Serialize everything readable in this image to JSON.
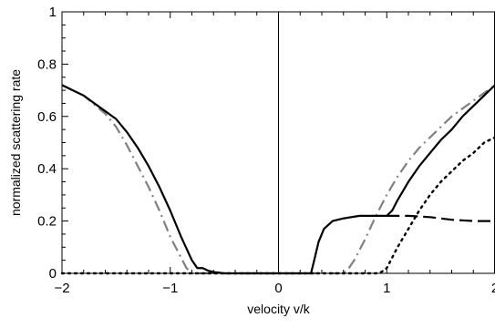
{
  "chart_data": {
    "type": "line",
    "title": "",
    "xlabel": "velocity  v/k",
    "ylabel": "normalized scattering rate",
    "xlim": [
      -2,
      2
    ],
    "ylim": [
      0,
      1
    ],
    "x_ticks": [
      "−2",
      "−1",
      "0",
      "1",
      "2"
    ],
    "y_ticks": [
      "0",
      "0.2",
      "0.4",
      "0.6",
      "0.8",
      "1"
    ],
    "grid": false,
    "legend": "none",
    "vertical_line_at": 0,
    "series": [
      {
        "style": "solid",
        "color": "#000000",
        "points": [
          [
            -2.0,
            0.72
          ],
          [
            -1.8,
            0.68
          ],
          [
            -1.6,
            0.62
          ],
          [
            -1.5,
            0.59
          ],
          [
            -1.4,
            0.54
          ],
          [
            -1.3,
            0.48
          ],
          [
            -1.2,
            0.41
          ],
          [
            -1.1,
            0.33
          ],
          [
            -1.0,
            0.24
          ],
          [
            -0.9,
            0.14
          ],
          [
            -0.8,
            0.05
          ],
          [
            -0.75,
            0.02
          ],
          [
            -0.7,
            0.02
          ],
          [
            -0.65,
            0.01
          ],
          [
            -0.6,
            0.005
          ],
          [
            -0.5,
            0.0
          ],
          [
            0.0,
            0.0
          ],
          [
            0.3,
            0.0
          ],
          [
            0.33,
            0.05
          ],
          [
            0.37,
            0.12
          ],
          [
            0.42,
            0.17
          ],
          [
            0.5,
            0.2
          ],
          [
            0.6,
            0.21
          ],
          [
            0.75,
            0.22
          ],
          [
            1.0,
            0.22
          ],
          [
            1.05,
            0.24
          ],
          [
            1.1,
            0.28
          ],
          [
            1.2,
            0.35
          ],
          [
            1.3,
            0.41
          ],
          [
            1.4,
            0.46
          ],
          [
            1.5,
            0.51
          ],
          [
            1.6,
            0.55
          ],
          [
            1.7,
            0.6
          ],
          [
            1.8,
            0.64
          ],
          [
            1.9,
            0.68
          ],
          [
            2.0,
            0.72
          ]
        ]
      },
      {
        "style": "dashed",
        "color": "#000000",
        "points": [
          [
            1.0,
            0.22
          ],
          [
            1.2,
            0.22
          ],
          [
            1.4,
            0.215
          ],
          [
            1.6,
            0.205
          ],
          [
            1.8,
            0.2
          ],
          [
            2.0,
            0.2
          ]
        ]
      },
      {
        "style": "dotted",
        "color": "#000000",
        "points": [
          [
            -2.0,
            0.0
          ],
          [
            -1.0,
            0.0
          ],
          [
            0.0,
            0.0
          ],
          [
            0.9,
            0.0
          ],
          [
            0.95,
            0.005
          ],
          [
            1.0,
            0.02
          ],
          [
            1.05,
            0.06
          ],
          [
            1.1,
            0.1
          ],
          [
            1.2,
            0.17
          ],
          [
            1.3,
            0.24
          ],
          [
            1.4,
            0.3
          ],
          [
            1.5,
            0.35
          ],
          [
            1.6,
            0.39
          ],
          [
            1.7,
            0.43
          ],
          [
            1.8,
            0.46
          ],
          [
            1.9,
            0.5
          ],
          [
            2.0,
            0.52
          ]
        ]
      },
      {
        "style": "dash-dot",
        "color": "#808080",
        "points": [
          [
            -2.0,
            0.72
          ],
          [
            -1.8,
            0.68
          ],
          [
            -1.6,
            0.61
          ],
          [
            -1.5,
            0.56
          ],
          [
            -1.4,
            0.49
          ],
          [
            -1.3,
            0.41
          ],
          [
            -1.2,
            0.33
          ],
          [
            -1.1,
            0.24
          ],
          [
            -1.0,
            0.14
          ],
          [
            -0.9,
            0.06
          ],
          [
            -0.85,
            0.02
          ],
          [
            -0.8,
            0.0
          ],
          [
            0.0,
            0.0
          ],
          [
            0.6,
            0.0
          ],
          [
            0.65,
            0.02
          ],
          [
            0.7,
            0.05
          ],
          [
            0.8,
            0.13
          ],
          [
            0.9,
            0.22
          ],
          [
            1.0,
            0.3
          ],
          [
            1.1,
            0.37
          ],
          [
            1.2,
            0.43
          ],
          [
            1.3,
            0.48
          ],
          [
            1.4,
            0.52
          ],
          [
            1.5,
            0.56
          ],
          [
            1.6,
            0.6
          ],
          [
            1.7,
            0.63
          ],
          [
            1.8,
            0.66
          ],
          [
            1.9,
            0.69
          ],
          [
            2.0,
            0.72
          ]
        ]
      }
    ]
  }
}
